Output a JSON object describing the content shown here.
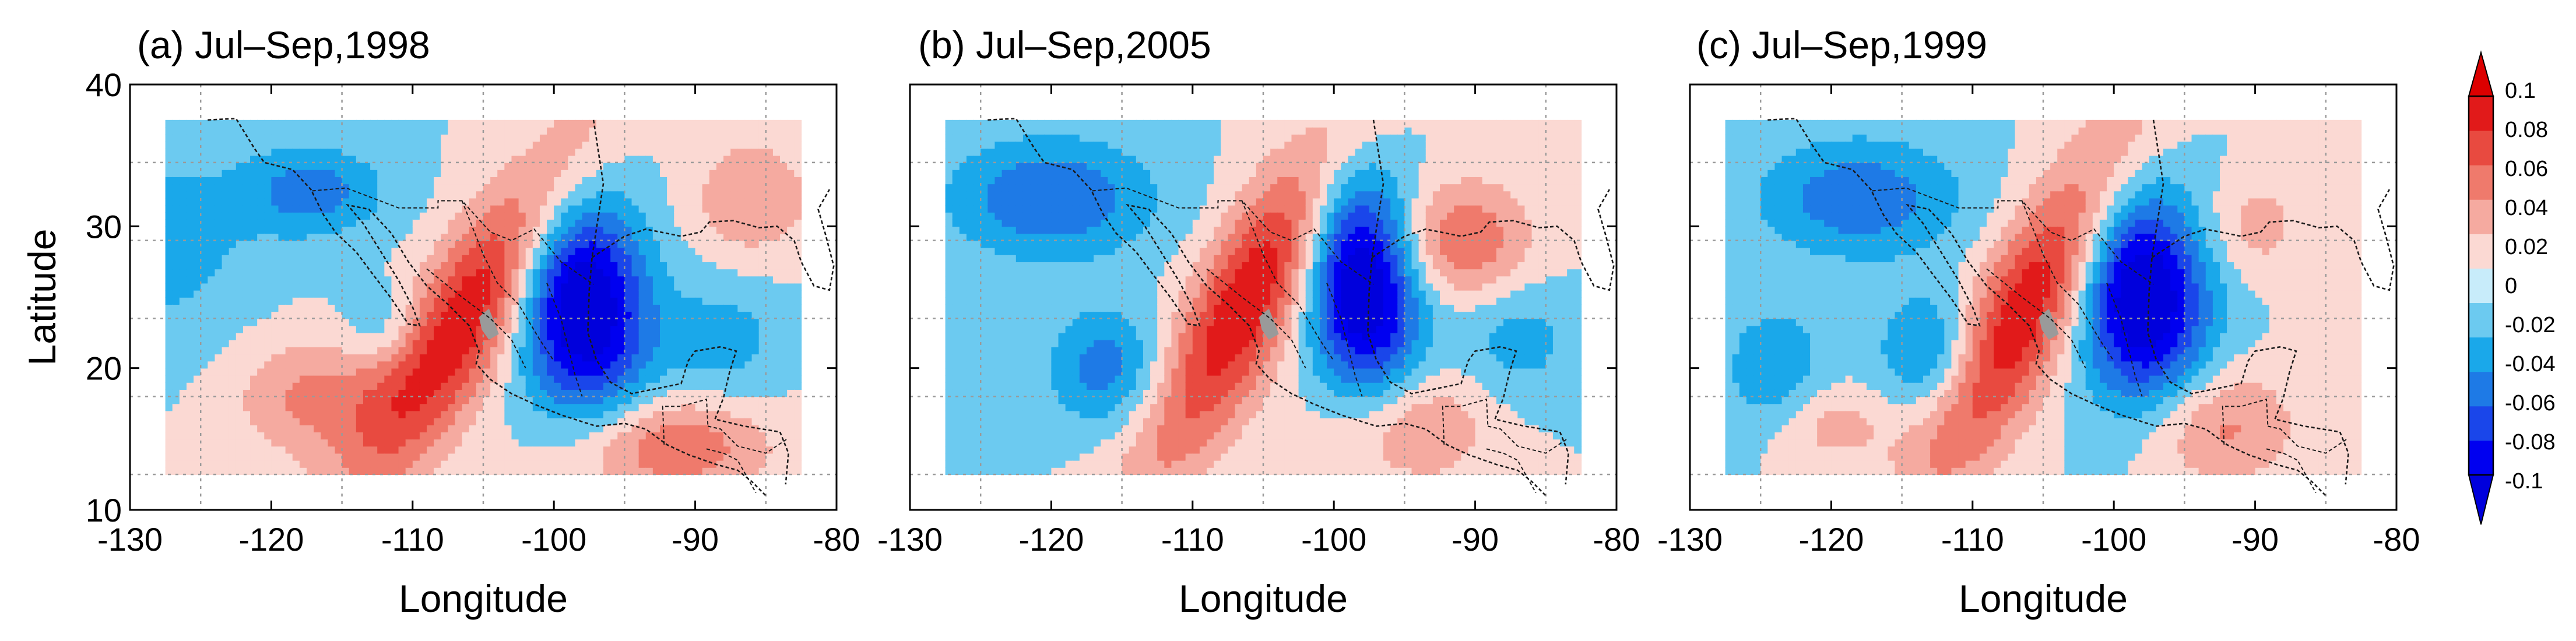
{
  "chart_data": {
    "type": "heatmap",
    "description_units": "anomaly",
    "panels": [
      {
        "id": "a",
        "title": "(a) Jul–Sep,1998",
        "features": [
          {
            "x": -106,
            "y": 24,
            "sx": 2.6,
            "sy": 10,
            "tilt": -0.55,
            "amp": 0.1
          },
          {
            "x": -98,
            "y": 24.5,
            "sx": 3.2,
            "sy": 5.5,
            "tilt": 0.1,
            "amp": -0.13
          },
          {
            "x": -117,
            "y": 32.5,
            "sx": 3.5,
            "sy": 2.2,
            "tilt": 0,
            "amp": -0.05
          },
          {
            "x": -128,
            "y": 29,
            "sx": 5,
            "sy": 5,
            "tilt": 0,
            "amp": -0.03
          },
          {
            "x": -117,
            "y": 18,
            "sx": 4,
            "sy": 3,
            "tilt": 0,
            "amp": 0.045
          },
          {
            "x": -92,
            "y": 14.5,
            "sx": 5,
            "sy": 2.5,
            "tilt": 0,
            "amp": 0.06
          },
          {
            "x": -86,
            "y": 32,
            "sx": 3,
            "sy": 3,
            "tilt": 0,
            "amp": 0.04
          },
          {
            "x": -88,
            "y": 22,
            "sx": 3,
            "sy": 3,
            "tilt": 0,
            "amp": -0.03
          },
          {
            "x": -112,
            "y": 23,
            "sx": 2,
            "sy": 2,
            "tilt": 0,
            "amp": -0.025
          }
        ]
      },
      {
        "id": "b",
        "title": "(b) Jul–Sep,2005",
        "features": [
          {
            "x": -106,
            "y": 25,
            "sx": 2.6,
            "sy": 10,
            "tilt": -0.5,
            "amp": 0.1
          },
          {
            "x": -98,
            "y": 26,
            "sx": 2.8,
            "sy": 6,
            "tilt": 0.1,
            "amp": -0.13
          },
          {
            "x": -120,
            "y": 32,
            "sx": 5,
            "sy": 3,
            "tilt": 0,
            "amp": -0.06
          },
          {
            "x": -116,
            "y": 20,
            "sx": 3,
            "sy": 3,
            "tilt": 0,
            "amp": -0.05
          },
          {
            "x": -91,
            "y": 29,
            "sx": 3.5,
            "sy": 3,
            "tilt": 0,
            "amp": 0.06
          },
          {
            "x": -95,
            "y": 16,
            "sx": 4,
            "sy": 3,
            "tilt": 0,
            "amp": 0.05
          },
          {
            "x": -87,
            "y": 22,
            "sx": 3,
            "sy": 3,
            "tilt": 0,
            "amp": -0.03
          }
        ]
      },
      {
        "id": "c",
        "title": "(c) Jul–Sep,1999",
        "features": [
          {
            "x": -106,
            "y": 24.5,
            "sx": 2.6,
            "sy": 10,
            "tilt": -0.5,
            "amp": 0.1
          },
          {
            "x": -98,
            "y": 25,
            "sx": 3.2,
            "sy": 5.5,
            "tilt": 0.1,
            "amp": -0.13
          },
          {
            "x": -118,
            "y": 32,
            "sx": 5,
            "sy": 3,
            "tilt": 0,
            "amp": -0.055
          },
          {
            "x": -113,
            "y": 21,
            "sx": 2.5,
            "sy": 3,
            "tilt": 0,
            "amp": -0.05
          },
          {
            "x": -124,
            "y": 20,
            "sx": 2.5,
            "sy": 3,
            "tilt": 0,
            "amp": -0.04
          },
          {
            "x": -93,
            "y": 16,
            "sx": 4,
            "sy": 3,
            "tilt": 0,
            "amp": 0.05
          },
          {
            "x": -90,
            "y": 30,
            "sx": 2.5,
            "sy": 2.5,
            "tilt": 0,
            "amp": 0.03
          },
          {
            "x": -120,
            "y": 16,
            "sx": 3,
            "sy": 2,
            "tilt": 0,
            "amp": 0.03
          }
        ]
      }
    ],
    "data_extent": {
      "lon": [
        -127.5,
        -82.5
      ],
      "lat": [
        12.5,
        37.5
      ]
    },
    "xlim": [
      -130,
      -80
    ],
    "ylim": [
      10,
      40
    ],
    "xticks": [
      -130,
      -120,
      -110,
      -100,
      -90,
      -80
    ],
    "xtick_labels": [
      "-130",
      "-120",
      "-110",
      "-100",
      "-90",
      "-80"
    ],
    "yticks": [
      10,
      20,
      30,
      40
    ],
    "ytick_labels": [
      "10",
      "20",
      "30",
      "40"
    ],
    "xlabel": "Longitude",
    "ylabel": "Latitude",
    "grid": true,
    "colorbar": {
      "levels": [
        -0.1,
        -0.08,
        -0.06,
        -0.04,
        -0.02,
        0,
        0.02,
        0.04,
        0.06,
        0.08,
        0.1
      ],
      "labels": [
        "-0.1",
        "-0.08",
        "-0.06",
        "-0.04",
        "-0.02",
        "0",
        "0.02",
        "0.04",
        "0.06",
        "0.08",
        "0.1"
      ],
      "colors": [
        "#0000f0",
        "#1a46ea",
        "#1e7ae6",
        "#1aa8ea",
        "#6ccaf0",
        "#c8ecfa",
        "#fbd9d3",
        "#f5aaa0",
        "#ef7a6c",
        "#e84a40",
        "#e11a1a"
      ],
      "under_color": "#0000dc",
      "over_color": "#dc0000"
    },
    "land_fill_color": "#9a9a9a"
  }
}
